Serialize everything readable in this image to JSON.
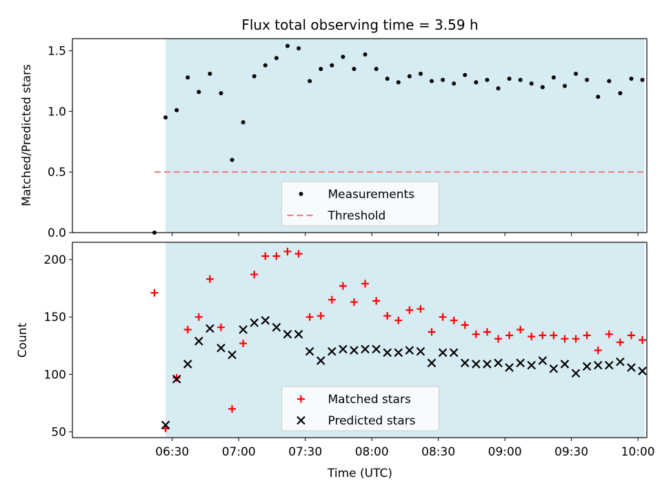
{
  "chart_data": [
    {
      "type": "scatter",
      "title": "Flux total observing time = 3.59 h",
      "xlabel": "",
      "ylabel": "Matched/Predicted stars",
      "ylim": [
        0,
        1.6
      ],
      "yticks": [
        0.0,
        0.5,
        1.0,
        1.5
      ],
      "ytick_labels": [
        "0.0",
        "0.5",
        "1.0",
        "1.5"
      ],
      "xticks": [
        "06:30",
        "07:00",
        "07:30",
        "08:00",
        "08:30",
        "09:00",
        "09:30",
        "10:00"
      ],
      "observing_window": {
        "start": "06:27",
        "end": "10:03",
        "color": "#add8e6"
      },
      "threshold": {
        "value": 0.5,
        "x_start": "06:22",
        "x_end": "10:03",
        "color": "#f08080",
        "style": "dashed"
      },
      "legend": {
        "placement": "lower center",
        "entries": [
          "Measurements",
          "Threshold"
        ]
      },
      "series": [
        {
          "name": "Measurements",
          "color": "#000000",
          "x": [
            "06:22",
            "06:27",
            "06:32",
            "06:37",
            "06:42",
            "06:47",
            "06:52",
            "06:57",
            "07:02",
            "07:07",
            "07:12",
            "07:17",
            "07:22",
            "07:27",
            "07:32",
            "07:37",
            "07:42",
            "07:47",
            "07:52",
            "07:57",
            "08:02",
            "08:07",
            "08:12",
            "08:17",
            "08:22",
            "08:27",
            "08:32",
            "08:37",
            "08:42",
            "08:47",
            "08:52",
            "08:57",
            "09:02",
            "09:07",
            "09:12",
            "09:17",
            "09:22",
            "09:27",
            "09:32",
            "09:37",
            "09:42",
            "09:47",
            "09:52",
            "09:57",
            "10:02"
          ],
          "y": [
            0.0,
            0.95,
            1.01,
            1.28,
            1.16,
            1.31,
            1.15,
            0.6,
            0.91,
            1.29,
            1.38,
            1.44,
            1.54,
            1.52,
            1.25,
            1.35,
            1.38,
            1.45,
            1.35,
            1.47,
            1.35,
            1.27,
            1.24,
            1.29,
            1.31,
            1.25,
            1.26,
            1.23,
            1.3,
            1.24,
            1.26,
            1.19,
            1.27,
            1.26,
            1.23,
            1.2,
            1.28,
            1.21,
            1.31,
            1.26,
            1.12,
            1.25,
            1.15,
            1.27,
            1.26
          ]
        }
      ]
    },
    {
      "type": "scatter",
      "title": "",
      "xlabel": "Time (UTC)",
      "ylabel": "Count",
      "ylim": [
        45,
        215
      ],
      "yticks": [
        50,
        100,
        150,
        200
      ],
      "ytick_labels": [
        "50",
        "100",
        "150",
        "200"
      ],
      "xticks": [
        "06:30",
        "07:00",
        "07:30",
        "08:00",
        "08:30",
        "09:00",
        "09:30",
        "10:00"
      ],
      "observing_window": {
        "start": "06:27",
        "end": "10:03",
        "color": "#add8e6"
      },
      "legend": {
        "placement": "lower center",
        "entries": [
          "Matched stars",
          "Predicted stars"
        ]
      },
      "series": [
        {
          "name": "Matched stars",
          "color": "#ff0000",
          "marker": "plus",
          "x": [
            "06:22",
            "06:27",
            "06:32",
            "06:37",
            "06:42",
            "06:47",
            "06:52",
            "06:57",
            "07:02",
            "07:07",
            "07:12",
            "07:17",
            "07:22",
            "07:27",
            "07:32",
            "07:37",
            "07:42",
            "07:47",
            "07:52",
            "07:57",
            "08:02",
            "08:07",
            "08:12",
            "08:17",
            "08:22",
            "08:27",
            "08:32",
            "08:37",
            "08:42",
            "08:47",
            "08:52",
            "08:57",
            "09:02",
            "09:07",
            "09:12",
            "09:17",
            "09:22",
            "09:27",
            "09:32",
            "09:37",
            "09:42",
            "09:47",
            "09:52",
            "09:57",
            "10:02"
          ],
          "y": [
            171,
            53,
            97,
            139,
            150,
            183,
            141,
            70,
            127,
            187,
            203,
            203,
            207,
            205,
            150,
            151,
            165,
            177,
            163,
            179,
            164,
            151,
            147,
            156,
            157,
            137,
            150,
            147,
            143,
            135,
            137,
            131,
            134,
            139,
            133,
            134,
            134,
            131,
            131,
            134,
            121,
            135,
            128,
            134,
            130
          ]
        },
        {
          "name": "Predicted stars",
          "color": "#000000",
          "marker": "x",
          "x": [
            "06:27",
            "06:32",
            "06:37",
            "06:42",
            "06:47",
            "06:52",
            "06:57",
            "07:02",
            "07:07",
            "07:12",
            "07:17",
            "07:22",
            "07:27",
            "07:32",
            "07:37",
            "07:42",
            "07:47",
            "07:52",
            "07:57",
            "08:02",
            "08:07",
            "08:12",
            "08:17",
            "08:22",
            "08:27",
            "08:32",
            "08:37",
            "08:42",
            "08:47",
            "08:52",
            "08:57",
            "09:02",
            "09:07",
            "09:12",
            "09:17",
            "09:22",
            "09:27",
            "09:32",
            "09:37",
            "09:42",
            "09:47",
            "09:52",
            "09:57",
            "10:02"
          ],
          "y": [
            56,
            96,
            109,
            129,
            140,
            123,
            117,
            139,
            145,
            147,
            141,
            135,
            135,
            120,
            112,
            120,
            122,
            121,
            122,
            122,
            119,
            119,
            121,
            120,
            110,
            119,
            119,
            110,
            109,
            109,
            110,
            106,
            110,
            108,
            112,
            105,
            109,
            101,
            107,
            108,
            108,
            111,
            106,
            103
          ]
        }
      ]
    }
  ]
}
